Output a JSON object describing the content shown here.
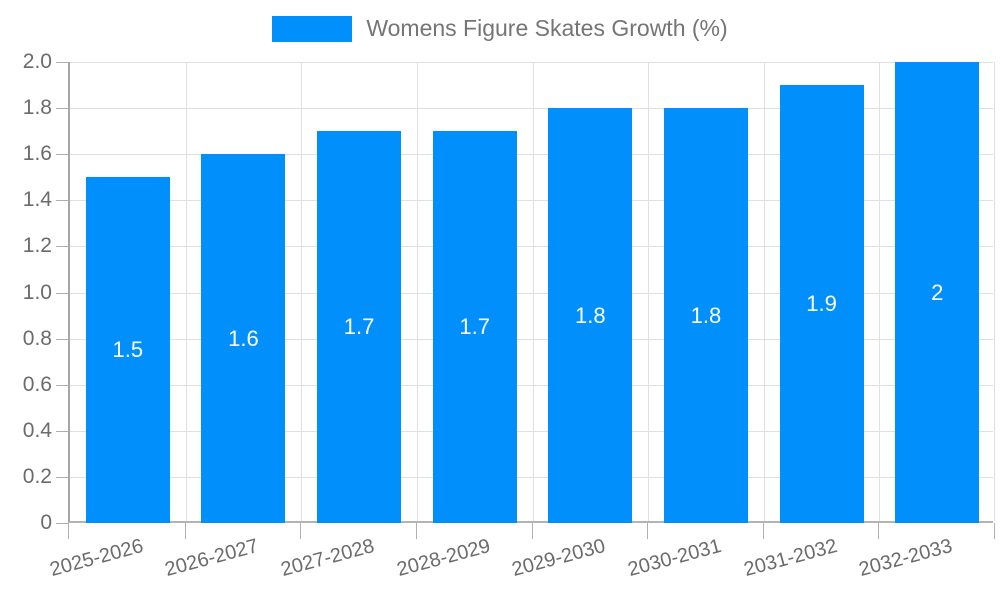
{
  "legend": {
    "label": "Womens Figure Skates Growth (%)",
    "swatch_color": "#008FFB"
  },
  "chart_data": {
    "type": "bar",
    "title": "",
    "xlabel": "",
    "ylabel": "",
    "categories": [
      "2025-2026",
      "2026-2027",
      "2027-2028",
      "2028-2029",
      "2029-2030",
      "2030-2031",
      "2031-2032",
      "2032-2033"
    ],
    "series": [
      {
        "name": "Womens Figure Skates Growth (%)",
        "values": [
          1.5,
          1.6,
          1.7,
          1.7,
          1.8,
          1.8,
          1.9,
          2
        ]
      }
    ],
    "bar_labels": [
      "1.5",
      "1.6",
      "1.7",
      "1.7",
      "1.8",
      "1.8",
      "1.9",
      "2"
    ],
    "ylim": [
      0,
      2
    ],
    "ytick_step": 0.2,
    "ytick_labels": [
      "0",
      "0.2",
      "0.4",
      "0.6",
      "0.8",
      "1.0",
      "1.2",
      "1.4",
      "1.6",
      "1.8",
      "2.0"
    ],
    "grid": true,
    "legend_position": "top",
    "colors": {
      "bar": "#008FFB",
      "gridline": "#e0e0e0",
      "axis_line": "#b0b0b0",
      "tick_label": "#6b6b6b",
      "bar_label": "#ffffff",
      "legend_text": "#757575"
    }
  }
}
